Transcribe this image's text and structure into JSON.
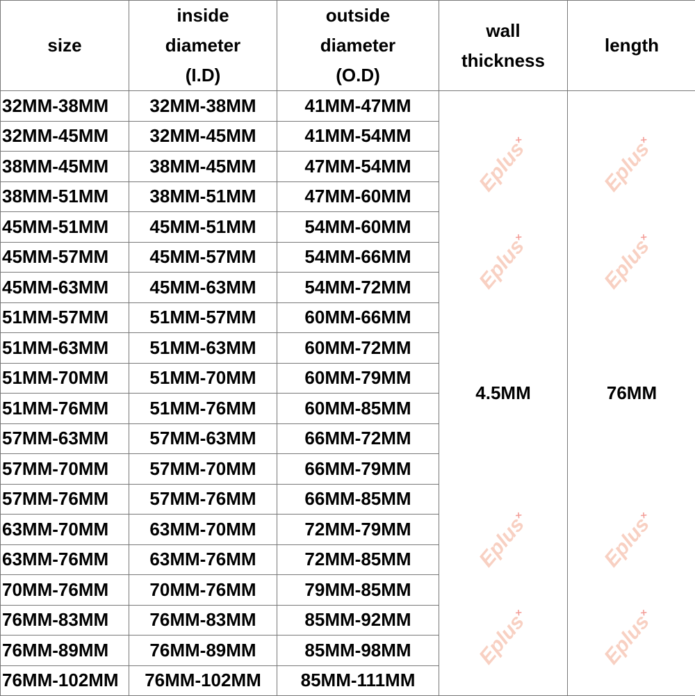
{
  "headers": [
    "size",
    "inside\ndiameter\n(I.D)",
    "outside\ndiameter\n(O.D)",
    "wall\nthickness",
    "length"
  ],
  "rows": [
    [
      "32MM-38MM",
      "32MM-38MM",
      "41MM-47MM"
    ],
    [
      "32MM-45MM",
      "32MM-45MM",
      "41MM-54MM"
    ],
    [
      "38MM-45MM",
      "38MM-45MM",
      "47MM-54MM"
    ],
    [
      "38MM-51MM",
      "38MM-51MM",
      "47MM-60MM"
    ],
    [
      "45MM-51MM",
      "45MM-51MM",
      "54MM-60MM"
    ],
    [
      "45MM-57MM",
      "45MM-57MM",
      "54MM-66MM"
    ],
    [
      "45MM-63MM",
      "45MM-63MM",
      "54MM-72MM"
    ],
    [
      "51MM-57MM",
      "51MM-57MM",
      "60MM-66MM"
    ],
    [
      "51MM-63MM",
      "51MM-63MM",
      "60MM-72MM"
    ],
    [
      "51MM-70MM",
      "51MM-70MM",
      "60MM-79MM"
    ],
    [
      "51MM-76MM",
      "51MM-76MM",
      "60MM-85MM"
    ],
    [
      "57MM-63MM",
      "57MM-63MM",
      "66MM-72MM"
    ],
    [
      "57MM-70MM",
      "57MM-70MM",
      "66MM-79MM"
    ],
    [
      "57MM-76MM",
      "57MM-76MM",
      "66MM-85MM"
    ],
    [
      "63MM-70MM",
      "63MM-70MM",
      "72MM-79MM"
    ],
    [
      "63MM-76MM",
      "63MM-76MM",
      "72MM-85MM"
    ],
    [
      "70MM-76MM",
      "70MM-76MM",
      "79MM-85MM"
    ],
    [
      "76MM-83MM",
      "76MM-83MM",
      "85MM-92MM"
    ],
    [
      "76MM-89MM",
      "76MM-89MM",
      "85MM-98MM"
    ],
    [
      "76MM-102MM",
      "76MM-102MM",
      "85MM-111MM"
    ]
  ],
  "wall_thickness": "4.5MM",
  "length": "76MM",
  "watermark": "Eplus"
}
